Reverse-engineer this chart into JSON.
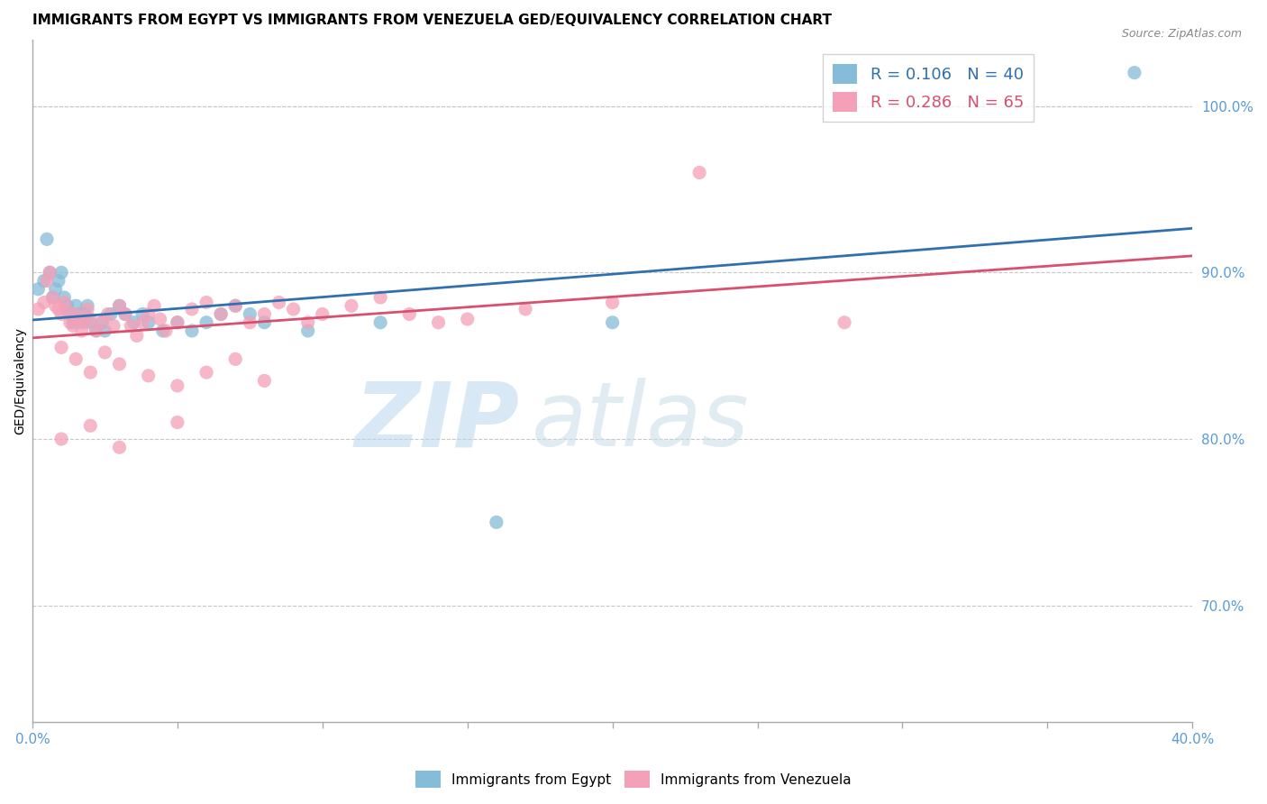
{
  "title": "IMMIGRANTS FROM EGYPT VS IMMIGRANTS FROM VENEZUELA GED/EQUIVALENCY CORRELATION CHART",
  "source_text": "Source: ZipAtlas.com",
  "ylabel": "GED/Equivalency",
  "xlim": [
    0.0,
    0.4
  ],
  "ylim": [
    0.63,
    1.04
  ],
  "xticks": [
    0.0,
    0.05,
    0.1,
    0.15,
    0.2,
    0.25,
    0.3,
    0.35,
    0.4
  ],
  "yticks": [
    0.7,
    0.8,
    0.9,
    1.0
  ],
  "yticklabels": [
    "70.0%",
    "80.0%",
    "90.0%",
    "100.0%"
  ],
  "egypt_color": "#85bcd8",
  "venezuela_color": "#f4a0b8",
  "egypt_line_color": "#3070b0",
  "venezuela_line_color": "#d94f6e",
  "R_egypt": 0.106,
  "N_egypt": 40,
  "R_venezuela": 0.286,
  "N_venezuela": 65,
  "legend_label_egypt": "Immigrants from Egypt",
  "legend_label_venezuela": "Immigrants from Venezuela",
  "watermark_zip": "ZIP",
  "watermark_atlas": "atlas",
  "title_fontsize": 11,
  "axis_label_fontsize": 10,
  "tick_fontsize": 11,
  "legend_fontsize": 13,
  "source_fontsize": 9,
  "background_color": "#ffffff",
  "grid_color": "#c8c8c8",
  "tick_color": "#5b9bd5",
  "axis_color": "#aaaaaa",
  "egypt_x": [
    0.002,
    0.004,
    0.005,
    0.006,
    0.007,
    0.008,
    0.009,
    0.01,
    0.011,
    0.012,
    0.013,
    0.014,
    0.015,
    0.016,
    0.017,
    0.018,
    0.019,
    0.02,
    0.022,
    0.024,
    0.025,
    0.027,
    0.03,
    0.032,
    0.035,
    0.038,
    0.04,
    0.045,
    0.05,
    0.055,
    0.06,
    0.065,
    0.07,
    0.075,
    0.08,
    0.095,
    0.12,
    0.16,
    0.2,
    0.38
  ],
  "egypt_y": [
    0.89,
    0.895,
    0.92,
    0.9,
    0.885,
    0.89,
    0.895,
    0.9,
    0.885,
    0.88,
    0.875,
    0.87,
    0.88,
    0.875,
    0.87,
    0.875,
    0.88,
    0.87,
    0.865,
    0.87,
    0.865,
    0.875,
    0.88,
    0.875,
    0.87,
    0.875,
    0.87,
    0.865,
    0.87,
    0.865,
    0.87,
    0.875,
    0.88,
    0.875,
    0.87,
    0.865,
    0.87,
    0.75,
    0.87,
    1.02
  ],
  "venezuela_x": [
    0.002,
    0.004,
    0.005,
    0.006,
    0.007,
    0.008,
    0.009,
    0.01,
    0.011,
    0.012,
    0.013,
    0.014,
    0.015,
    0.016,
    0.017,
    0.018,
    0.019,
    0.02,
    0.022,
    0.024,
    0.026,
    0.028,
    0.03,
    0.032,
    0.034,
    0.036,
    0.038,
    0.04,
    0.042,
    0.044,
    0.046,
    0.05,
    0.055,
    0.06,
    0.065,
    0.07,
    0.075,
    0.08,
    0.085,
    0.09,
    0.095,
    0.1,
    0.11,
    0.12,
    0.13,
    0.14,
    0.15,
    0.17,
    0.2,
    0.23,
    0.01,
    0.015,
    0.02,
    0.025,
    0.03,
    0.04,
    0.05,
    0.06,
    0.07,
    0.08,
    0.01,
    0.02,
    0.03,
    0.05,
    0.28
  ],
  "venezuela_y": [
    0.878,
    0.882,
    0.895,
    0.9,
    0.885,
    0.88,
    0.878,
    0.875,
    0.882,
    0.877,
    0.87,
    0.868,
    0.875,
    0.872,
    0.865,
    0.87,
    0.878,
    0.872,
    0.865,
    0.87,
    0.875,
    0.868,
    0.88,
    0.875,
    0.868,
    0.862,
    0.87,
    0.875,
    0.88,
    0.872,
    0.865,
    0.87,
    0.878,
    0.882,
    0.875,
    0.88,
    0.87,
    0.875,
    0.882,
    0.878,
    0.87,
    0.875,
    0.88,
    0.885,
    0.875,
    0.87,
    0.872,
    0.878,
    0.882,
    0.96,
    0.855,
    0.848,
    0.84,
    0.852,
    0.845,
    0.838,
    0.832,
    0.84,
    0.848,
    0.835,
    0.8,
    0.808,
    0.795,
    0.81,
    0.87
  ]
}
